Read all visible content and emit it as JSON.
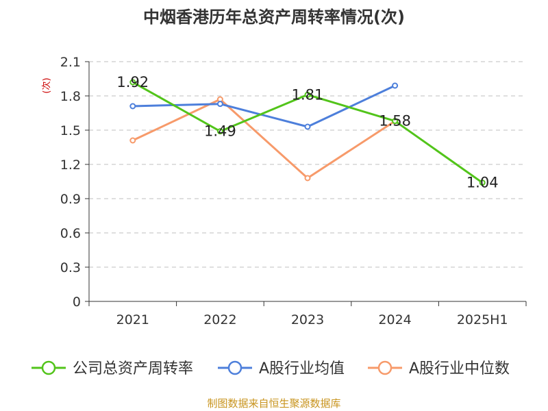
{
  "chart_data": {
    "type": "line",
    "title": "中烟香港历年总资产周转率情况(次)",
    "ylabel": "(次)",
    "categories": [
      "2021",
      "2022",
      "2023",
      "2024",
      "2025H1"
    ],
    "ylim": [
      0,
      2.1
    ],
    "yticks": [
      "0",
      "0.3",
      "0.6",
      "0.9",
      "1.2",
      "1.5",
      "1.8",
      "2.1"
    ],
    "grid": true,
    "legend_position": "bottom",
    "series": [
      {
        "name": "公司总资产周转率",
        "color": "#52c41a",
        "values": [
          1.92,
          1.49,
          1.81,
          1.58,
          1.04
        ],
        "labels": [
          "1.92",
          "1.49",
          "1.81",
          "1.58",
          "1.04"
        ]
      },
      {
        "name": "A股行业均值",
        "color": "#4d7fdb",
        "values": [
          1.71,
          1.73,
          1.53,
          1.89,
          null
        ],
        "labels": []
      },
      {
        "name": "A股行业中位数",
        "color": "#f79a6a",
        "values": [
          1.41,
          1.77,
          1.08,
          1.58,
          null
        ],
        "labels": []
      }
    ],
    "source": "制图数据来自恒生聚源数据库"
  }
}
